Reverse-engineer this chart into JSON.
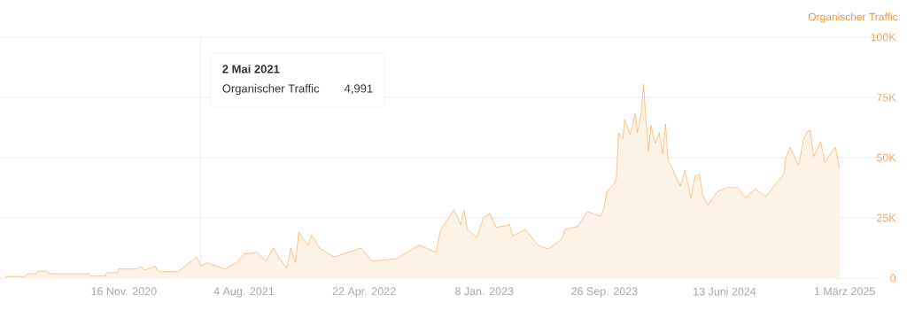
{
  "chart_data": {
    "type": "area",
    "ylabel": "Organischer Traffic",
    "color": "#f0922e",
    "annotations": [
      "2 Mai 2021",
      "Organischer Traffic",
      "4,991"
    ],
    "ref_lines": [
      {
        "axis": "x",
        "value": "2021-05-02",
        "color": "#e6ecf2"
      }
    ],
    "grid": "y",
    "xlim": [
      "2020-02-21",
      "2025-05-10"
    ],
    "ylim": [
      0,
      100000
    ],
    "xticks": [
      {
        "value": "2020-11-16",
        "label": "16 Nov. 2020"
      },
      {
        "value": "2021-08-04",
        "label": "4 Aug. 2021"
      },
      {
        "value": "2022-04-22",
        "label": "22 Apr. 2022"
      },
      {
        "value": "2023-01-08",
        "label": "8 Jan. 2023"
      },
      {
        "value": "2023-09-26",
        "label": "26 Sep. 2023"
      },
      {
        "value": "2024-06-13",
        "label": "13 Juni 2024"
      },
      {
        "value": "2025-03-01",
        "label": "1 März 2025"
      }
    ],
    "yticks": [
      0,
      {
        "value": 25000,
        "label": "25K"
      },
      {
        "value": 50000,
        "label": "50K"
      },
      {
        "value": 75000,
        "label": "75K"
      },
      {
        "value": 100000,
        "label": "100K"
      }
    ],
    "x": [
      "2020-03-04",
      "2020-04-17",
      "2020-04-21",
      "2020-05-10",
      "2020-05-12",
      "2020-06-04",
      "2020-06-08",
      "2020-09-02",
      "2020-09-04",
      "2020-10-07",
      "2020-10-10",
      "2020-11-03",
      "2020-11-04",
      "2020-12-13",
      "2020-12-23",
      "2021-01-01",
      "2021-01-24",
      "2021-01-30",
      "2021-03-13",
      "2021-04-01",
      "2021-04-24",
      "2021-05-02",
      "2021-05-16",
      "2021-06-23",
      "2021-07-20",
      "2021-08-04",
      "2021-09-02",
      "2021-09-21",
      "2021-10-07",
      "2021-10-20",
      "2021-11-05",
      "2021-11-14",
      "2021-11-24",
      "2021-12-01",
      "2021-12-21",
      "2021-12-29",
      "2022-01-15",
      "2022-02-16",
      "2022-04-15",
      "2022-05-10",
      "2022-07-01",
      "2022-08-20",
      "2022-09-25",
      "2022-10-05",
      "2022-11-03",
      "2022-11-18",
      "2022-11-25",
      "2022-12-02",
      "2022-12-23",
      "2023-01-06",
      "2023-01-20",
      "2023-02-03",
      "2023-03-04",
      "2023-03-11",
      "2023-04-07",
      "2023-05-06",
      "2023-05-27",
      "2023-06-25",
      "2023-07-02",
      "2023-07-30",
      "2023-08-20",
      "2023-09-18",
      "2023-09-25",
      "2023-10-01",
      "2023-10-16",
      "2023-10-22",
      "2023-10-27",
      "2023-11-05",
      "2023-11-09",
      "2023-11-21",
      "2023-12-02",
      "2023-12-07",
      "2023-12-15",
      "2023-12-20",
      "2023-12-25",
      "2023-12-31",
      "2024-01-05",
      "2024-01-15",
      "2024-01-23",
      "2024-01-31",
      "2024-02-06",
      "2024-02-11",
      "2024-02-29",
      "2024-03-09",
      "2024-03-19",
      "2024-04-01",
      "2024-04-10",
      "2024-04-20",
      "2024-04-26",
      "2024-05-08",
      "2024-05-28",
      "2024-06-17",
      "2024-07-12",
      "2024-07-28",
      "2024-08-19",
      "2024-09-11",
      "2024-10-03",
      "2024-10-20",
      "2024-10-24",
      "2024-11-03",
      "2024-11-09",
      "2024-11-21",
      "2024-12-02",
      "2024-12-10",
      "2024-12-16",
      "2024-12-24",
      "2025-01-08",
      "2025-01-17",
      "2025-02-02",
      "2025-02-09",
      "2025-02-18"
    ],
    "values": [
      700,
      700,
      1800,
      1800,
      2900,
      2900,
      1800,
      1800,
      850,
      850,
      2300,
      2300,
      3800,
      3800,
      4900,
      3400,
      4900,
      2700,
      2700,
      5400,
      8800,
      4991,
      6400,
      3700,
      6600,
      10000,
      10700,
      7000,
      12500,
      8100,
      4200,
      12500,
      6400,
      19200,
      13700,
      18000,
      12500,
      8800,
      12500,
      7000,
      8100,
      13700,
      10700,
      19900,
      28400,
      22200,
      28300,
      20200,
      16900,
      25000,
      26900,
      21000,
      22200,
      17500,
      20200,
      13500,
      12100,
      16200,
      20200,
      21500,
      27600,
      25600,
      29000,
      35700,
      39100,
      41200,
      60300,
      57800,
      65800,
      59700,
      68300,
      60300,
      68900,
      80500,
      66400,
      52900,
      63300,
      56000,
      60300,
      51700,
      64000,
      49300,
      41900,
      38200,
      44600,
      33300,
      42500,
      43100,
      34600,
      30300,
      35800,
      37600,
      37600,
      33300,
      37000,
      33900,
      39400,
      43100,
      49900,
      54400,
      51700,
      46800,
      57800,
      60900,
      61400,
      50500,
      56600,
      48000,
      52900,
      54400,
      45600
    ]
  }
}
